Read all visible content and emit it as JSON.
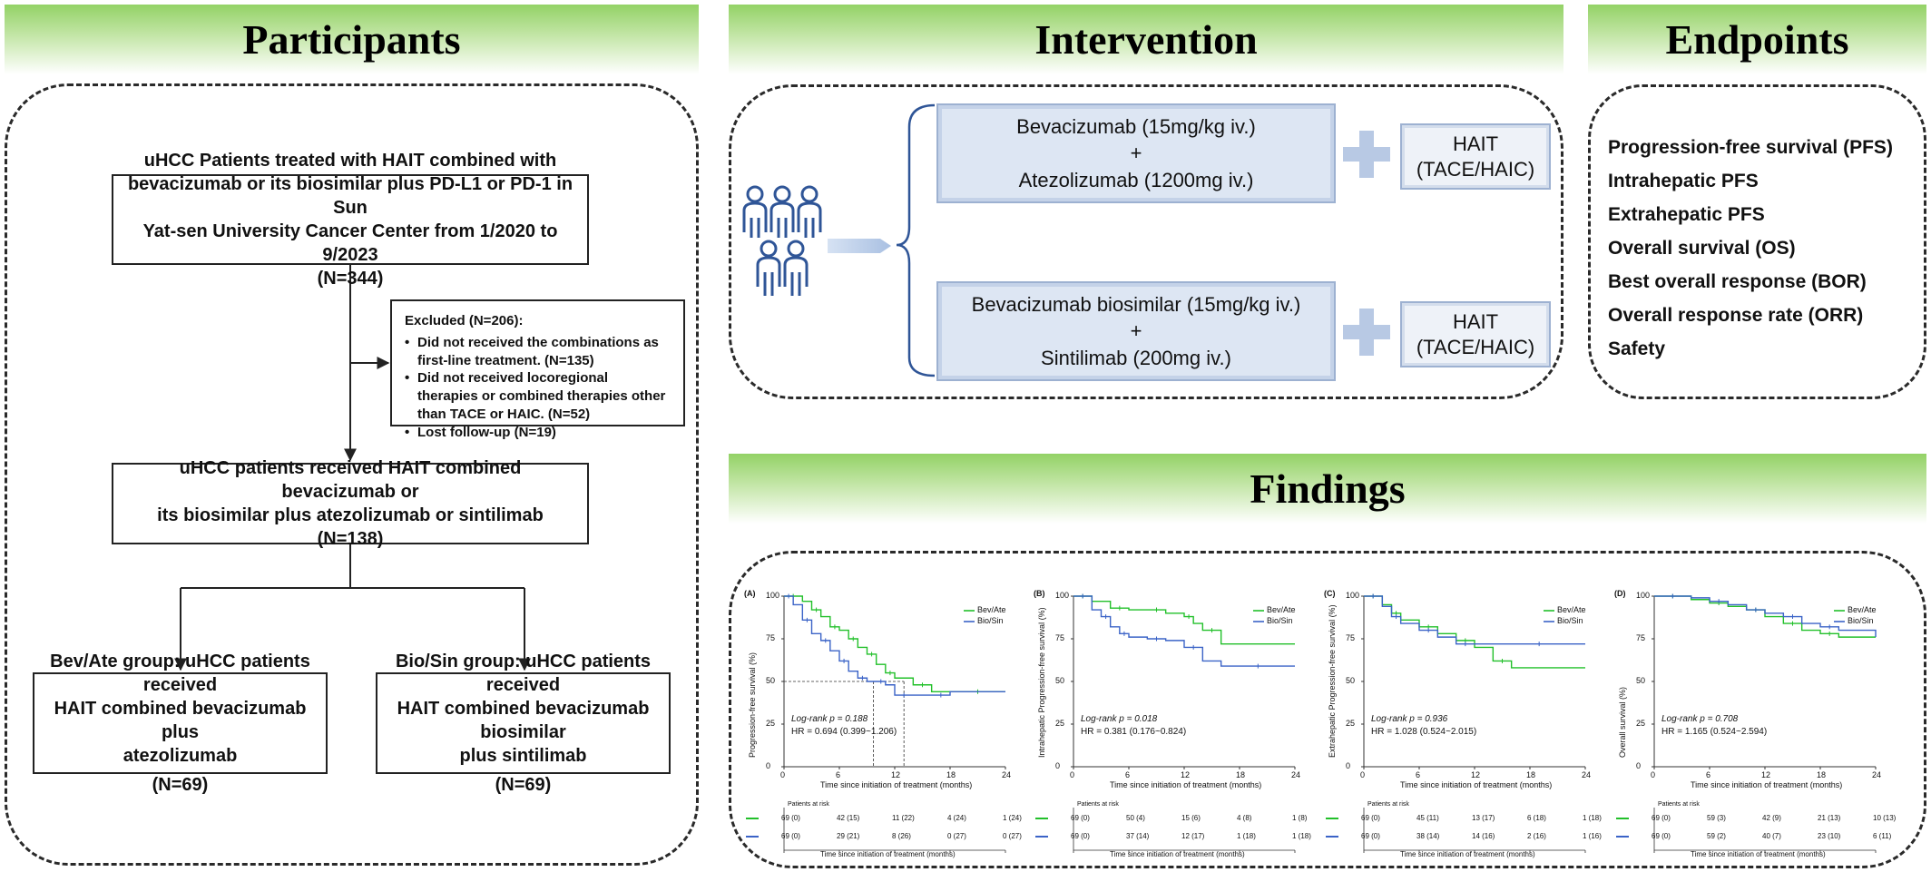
{
  "headers": {
    "participants": "Participants",
    "intervention": "Intervention",
    "endpoints": "Endpoints",
    "findings": "Findings"
  },
  "flowchart": {
    "screening": {
      "line1": "uHCC Patients treated with HAIT combined with",
      "line2": "bevacizumab or its biosimilar plus PD-L1  or PD-1 in Sun",
      "line3": "Yat-sen University Cancer Center from 1/2020 to 9/2023",
      "n": "(N=344)"
    },
    "excluded": {
      "title": "Excluded (N=206):",
      "reasons": [
        "Did not received the combinations as first-line treatment. (N=135)",
        "Did not received locoregional therapies or combined therapies other than TACE or HAIC. (N=52)",
        "Lost follow-up (N=19)"
      ]
    },
    "received": {
      "line1": "uHCC patients received HAIT combined bevacizumab or",
      "line2": "its biosimilar plus atezolizumab or sintilimab",
      "n": "(N=138)"
    },
    "group_bev": {
      "line1": "Bev/Ate group: uHCC patients received",
      "line2": "HAIT combined bevacizumab plus",
      "line3": "atezolizumab",
      "n": "(N=69)"
    },
    "group_bio": {
      "line1": "Bio/Sin group: uHCC patients received",
      "line2": "HAIT combined bevacizumab biosimilar",
      "line3": "plus sintilimab",
      "n": "(N=69)"
    }
  },
  "intervention": {
    "icon": "people-group-icon",
    "arm1": {
      "drug1": "Bevacizumab (15mg/kg iv.)",
      "plus": "+",
      "drug2": "Atezolizumab (1200mg iv.)",
      "hait": "HAIT",
      "hait_sub": "(TACE/HAIC)"
    },
    "arm2": {
      "drug1": "Bevacizumab biosimilar (15mg/kg iv.)",
      "plus": "+",
      "drug2": "Sintilimab (200mg iv.)",
      "hait": "HAIT",
      "hait_sub": "(TACE/HAIC)"
    }
  },
  "endpoints": [
    "Progression-free survival (PFS)",
    "Intrahepatic PFS",
    "Extrahepatic PFS",
    "Overall survival (OS)",
    "Best overall response (BOR)",
    "Overall response rate (ORR)",
    "Safety"
  ],
  "colors": {
    "banner_green": "#93d266",
    "bev_ate": "#22c02a",
    "bio_sin": "#3b63c7",
    "drug_box": "#dde6f3"
  },
  "chart_data": [
    {
      "type": "line",
      "panel": "(A)",
      "ylabel": "Progression-free survival (%)",
      "xlabel": "Time since initiation of treatment (months)",
      "xlim": [
        0,
        24
      ],
      "ylim": [
        0,
        100
      ],
      "x_ticks": [
        "0",
        "6",
        "12",
        "18",
        "24"
      ],
      "y_ticks": [
        "0",
        "25",
        "50",
        "75",
        "100"
      ],
      "legend": [
        "Bev/Ate",
        "Bio/Sin"
      ],
      "stat1": "Log-rank p = 0.188",
      "stat2": "HR = 0.694 (0.399~1.206)",
      "median_line": true,
      "series": [
        {
          "name": "Bev/Ate",
          "x": [
            0,
            2,
            3,
            4,
            5,
            6,
            7,
            8,
            9,
            10,
            11,
            12,
            14,
            16,
            18,
            24
          ],
          "y": [
            100,
            97,
            92,
            88,
            82,
            80,
            75,
            70,
            66,
            60,
            55,
            52,
            48,
            44,
            44,
            44
          ]
        },
        {
          "name": "Bio/Sin",
          "x": [
            0,
            1,
            2,
            3,
            4,
            5,
            6,
            7,
            8,
            9,
            10,
            11,
            12,
            14,
            16,
            18,
            24
          ],
          "y": [
            100,
            95,
            86,
            78,
            74,
            68,
            62,
            56,
            52,
            50,
            50,
            48,
            42,
            42,
            42,
            44,
            44
          ]
        }
      ],
      "risk_label": "Patients at risk",
      "risk_xlabel": "Time since initiation of treatment (months)",
      "risk_rows": [
        [
          "69 (0)",
          "42 (15)",
          "11 (22)",
          "4 (24)",
          "1 (24)"
        ],
        [
          "69 (0)",
          "29 (21)",
          "8 (26)",
          "0 (27)",
          "0 (27)"
        ]
      ]
    },
    {
      "type": "line",
      "panel": "(B)",
      "ylabel": "Intrahepatic Progression-free survival (%)",
      "xlabel": "Time since initiation of treatment (months)",
      "xlim": [
        0,
        24
      ],
      "ylim": [
        0,
        100
      ],
      "x_ticks": [
        "0",
        "6",
        "12",
        "18",
        "24"
      ],
      "y_ticks": [
        "0",
        "25",
        "50",
        "75",
        "100"
      ],
      "legend": [
        "Bev/Ate",
        "Bio/Sin"
      ],
      "stat1": "Log-rank p = 0.018",
      "stat2": "HR = 0.381 (0.176~0.824)",
      "median_line": false,
      "series": [
        {
          "name": "Bev/Ate",
          "x": [
            0,
            2,
            4,
            6,
            8,
            10,
            12,
            13,
            14,
            16,
            24
          ],
          "y": [
            100,
            97,
            93,
            92,
            92,
            90,
            88,
            84,
            80,
            72,
            72
          ]
        },
        {
          "name": "Bio/Sin",
          "x": [
            0,
            2,
            3,
            4,
            5,
            6,
            8,
            10,
            12,
            14,
            16,
            24
          ],
          "y": [
            100,
            92,
            88,
            82,
            78,
            76,
            75,
            74,
            70,
            62,
            59,
            59
          ]
        }
      ],
      "risk_label": "Patients at risk",
      "risk_xlabel": "Time since initiation of treatment (months)",
      "risk_rows": [
        [
          "69 (0)",
          "50 (4)",
          "15 (6)",
          "4 (8)",
          "1 (8)"
        ],
        [
          "69 (0)",
          "37 (14)",
          "12 (17)",
          "1 (18)",
          "1 (18)"
        ]
      ]
    },
    {
      "type": "line",
      "panel": "(C)",
      "ylabel": "Extrahepatic Progression-free survival (%)",
      "xlabel": "Time since initiation of treatment (months)",
      "xlim": [
        0,
        24
      ],
      "ylim": [
        0,
        100
      ],
      "x_ticks": [
        "0",
        "6",
        "12",
        "18",
        "24"
      ],
      "y_ticks": [
        "0",
        "25",
        "50",
        "75",
        "100"
      ],
      "legend": [
        "Bev/Ate",
        "Bio/Sin"
      ],
      "stat1": "Log-rank p = 0.936",
      "stat2": "HR = 1.028 (0.524~2.015)",
      "median_line": false,
      "series": [
        {
          "name": "Bev/Ate",
          "x": [
            0,
            2,
            3,
            4,
            6,
            8,
            10,
            12,
            14,
            16,
            24
          ],
          "y": [
            100,
            95,
            90,
            86,
            82,
            78,
            74,
            70,
            62,
            58,
            58
          ]
        },
        {
          "name": "Bio/Sin",
          "x": [
            0,
            2,
            3,
            4,
            6,
            8,
            10,
            12,
            14,
            24
          ],
          "y": [
            100,
            94,
            88,
            84,
            80,
            76,
            72,
            72,
            72,
            72
          ]
        }
      ],
      "risk_label": "Patients at risk",
      "risk_xlabel": "Time since initiation of treatment (months)",
      "risk_rows": [
        [
          "69 (0)",
          "45 (11)",
          "13 (17)",
          "6 (18)",
          "1 (18)"
        ],
        [
          "69 (0)",
          "38 (14)",
          "14 (16)",
          "2 (16)",
          "1 (16)"
        ]
      ]
    },
    {
      "type": "line",
      "panel": "(D)",
      "ylabel": "Overall survival (%)",
      "xlabel": "Time since initiation of treatment (months)",
      "xlim": [
        0,
        24
      ],
      "ylim": [
        0,
        100
      ],
      "x_ticks": [
        "0",
        "6",
        "12",
        "18",
        "24"
      ],
      "y_ticks": [
        "0",
        "25",
        "50",
        "75",
        "100"
      ],
      "legend": [
        "Bev/Ate",
        "Bio/Sin"
      ],
      "stat1": "Log-rank p = 0.708",
      "stat2": "HR = 1.165 (0.524~2.594)",
      "median_line": false,
      "series": [
        {
          "name": "Bev/Ate",
          "x": [
            0,
            4,
            6,
            8,
            10,
            12,
            14,
            16,
            18,
            20,
            24
          ],
          "y": [
            100,
            98,
            96,
            94,
            92,
            88,
            84,
            80,
            78,
            76,
            76
          ]
        },
        {
          "name": "Bio/Sin",
          "x": [
            0,
            4,
            6,
            8,
            10,
            12,
            14,
            16,
            18,
            20,
            24
          ],
          "y": [
            100,
            99,
            97,
            95,
            92,
            90,
            88,
            84,
            82,
            80,
            76
          ]
        }
      ],
      "risk_label": "Patients at risk",
      "risk_xlabel": "Time since initiation of treatment (months)",
      "risk_rows": [
        [
          "69 (0)",
          "59 (3)",
          "42 (9)",
          "21 (13)",
          "10 (13)"
        ],
        [
          "69 (0)",
          "59 (2)",
          "40 (7)",
          "23 (10)",
          "6 (11)"
        ]
      ]
    }
  ]
}
